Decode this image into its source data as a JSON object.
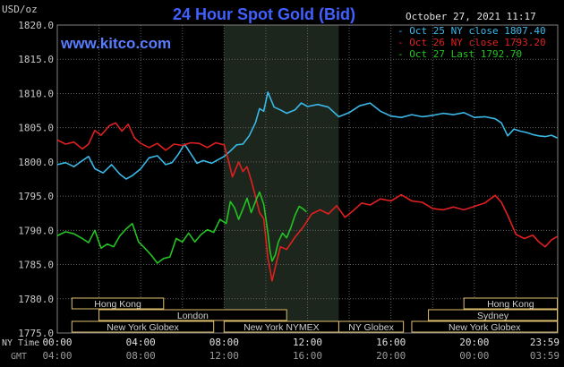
{
  "header": {
    "unit_label": "USD/oz",
    "title": "24 Hour Spot Gold (Bid)",
    "datetime": "October 27, 2021 11:17",
    "watermark": "www.kitco.com"
  },
  "colors": {
    "background": "#000000",
    "plot_bg": "#000000",
    "session_highlight": "#1c261c",
    "grid": "#606060",
    "title": "#4060ff",
    "watermark": "#5a7cff",
    "oct25": "#3ab8e8",
    "oct26": "#e02020",
    "oct27": "#22c322",
    "band_fill": "#000000",
    "band_stroke": "#e0c070",
    "band_text": "#d0d0d0",
    "axis_text": "#c8c8c8",
    "bottom_text": "#9a9a9a"
  },
  "chart_data": {
    "type": "line",
    "title": "24 Hour Spot Gold (Bid)",
    "ylabel": "USD/oz",
    "xlabel": "",
    "ylim": [
      1775,
      1820
    ],
    "xlim": [
      0,
      24
    ],
    "yticks": [
      "1820.0",
      "1815.0",
      "1810.0",
      "1805.0",
      "1800.0",
      "1795.0",
      "1790.0",
      "1785.0",
      "1780.0",
      "1775.0"
    ],
    "xticks_ny": [
      "00:00",
      "04:00",
      "08:00",
      "12:00",
      "16:00",
      "20:00",
      "23:59"
    ],
    "xticks_gmt": [
      "04:00",
      "08:00",
      "12:00",
      "16:00",
      "20:00",
      "00:00",
      "03:59"
    ],
    "x_row_label_ny": "NY Time",
    "x_row_label_gmt": "GMT",
    "grid": true,
    "legend_position": "top-right",
    "legend": [
      {
        "text": "Oct 25 NY close 1807.40",
        "series": "oct25"
      },
      {
        "text": "Oct 26 NY close 1793.20",
        "series": "oct26"
      },
      {
        "text": "Oct 27 Last 1792.70",
        "series": "oct27"
      }
    ],
    "series": [
      {
        "name": "Oct 25 NY close 1807.40",
        "key": "oct25",
        "points": [
          [
            0,
            1799.6
          ],
          [
            0.4,
            1799.9
          ],
          [
            0.8,
            1799.3
          ],
          [
            1.2,
            1800.2
          ],
          [
            1.5,
            1800.8
          ],
          [
            1.8,
            1799.0
          ],
          [
            2.2,
            1798.4
          ],
          [
            2.6,
            1799.6
          ],
          [
            3.0,
            1798.2
          ],
          [
            3.3,
            1797.5
          ],
          [
            3.6,
            1798.0
          ],
          [
            4.0,
            1799.0
          ],
          [
            4.4,
            1800.6
          ],
          [
            4.8,
            1800.9
          ],
          [
            5.2,
            1799.6
          ],
          [
            5.5,
            1799.9
          ],
          [
            5.8,
            1801.1
          ],
          [
            6.1,
            1802.6
          ],
          [
            6.4,
            1801.2
          ],
          [
            6.7,
            1799.8
          ],
          [
            7.0,
            1800.2
          ],
          [
            7.4,
            1799.8
          ],
          [
            7.7,
            1800.3
          ],
          [
            8.0,
            1800.8
          ],
          [
            8.3,
            1801.6
          ],
          [
            8.6,
            1802.5
          ],
          [
            8.9,
            1802.6
          ],
          [
            9.2,
            1803.8
          ],
          [
            9.5,
            1805.7
          ],
          [
            9.7,
            1807.8
          ],
          [
            9.9,
            1807.4
          ],
          [
            10.1,
            1810.2
          ],
          [
            10.4,
            1808.0
          ],
          [
            10.7,
            1807.6
          ],
          [
            11.0,
            1807.1
          ],
          [
            11.4,
            1807.6
          ],
          [
            11.7,
            1808.6
          ],
          [
            12.0,
            1808.1
          ],
          [
            12.5,
            1808.4
          ],
          [
            13.0,
            1808.0
          ],
          [
            13.5,
            1806.6
          ],
          [
            14.0,
            1807.2
          ],
          [
            14.5,
            1808.2
          ],
          [
            15.0,
            1808.6
          ],
          [
            15.5,
            1807.4
          ],
          [
            16.0,
            1806.7
          ],
          [
            16.5,
            1806.5
          ],
          [
            17.0,
            1806.9
          ],
          [
            17.5,
            1806.6
          ],
          [
            18.0,
            1806.8
          ],
          [
            18.5,
            1807.1
          ],
          [
            19.0,
            1806.9
          ],
          [
            19.5,
            1807.2
          ],
          [
            20.0,
            1806.5
          ],
          [
            20.5,
            1806.6
          ],
          [
            21.0,
            1806.3
          ],
          [
            21.3,
            1805.7
          ],
          [
            21.6,
            1803.8
          ],
          [
            21.9,
            1804.8
          ],
          [
            22.2,
            1804.5
          ],
          [
            22.5,
            1804.3
          ],
          [
            22.8,
            1804.0
          ],
          [
            23.1,
            1803.8
          ],
          [
            23.4,
            1803.7
          ],
          [
            23.7,
            1803.9
          ],
          [
            23.98,
            1803.5
          ]
        ]
      },
      {
        "name": "Oct 26 NY close 1793.20",
        "key": "oct26",
        "points": [
          [
            0,
            1803.2
          ],
          [
            0.4,
            1802.6
          ],
          [
            0.8,
            1802.9
          ],
          [
            1.2,
            1801.9
          ],
          [
            1.5,
            1802.6
          ],
          [
            1.8,
            1804.6
          ],
          [
            2.1,
            1803.9
          ],
          [
            2.5,
            1805.3
          ],
          [
            2.8,
            1805.7
          ],
          [
            3.1,
            1804.5
          ],
          [
            3.4,
            1805.5
          ],
          [
            3.7,
            1803.5
          ],
          [
            4.0,
            1802.7
          ],
          [
            4.4,
            1802.1
          ],
          [
            4.8,
            1802.7
          ],
          [
            5.2,
            1801.7
          ],
          [
            5.6,
            1802.6
          ],
          [
            6.0,
            1802.4
          ],
          [
            6.4,
            1802.8
          ],
          [
            6.8,
            1802.7
          ],
          [
            7.2,
            1802.1
          ],
          [
            7.6,
            1802.8
          ],
          [
            8.0,
            1802.5
          ],
          [
            8.2,
            1800.3
          ],
          [
            8.4,
            1797.8
          ],
          [
            8.7,
            1800.0
          ],
          [
            8.9,
            1798.6
          ],
          [
            9.1,
            1799.3
          ],
          [
            9.3,
            1797.3
          ],
          [
            9.5,
            1795.0
          ],
          [
            9.7,
            1792.6
          ],
          [
            9.9,
            1791.7
          ],
          [
            10.1,
            1786.0
          ],
          [
            10.3,
            1782.6
          ],
          [
            10.5,
            1785.2
          ],
          [
            10.7,
            1787.6
          ],
          [
            11.0,
            1787.2
          ],
          [
            11.4,
            1789.0
          ],
          [
            11.8,
            1790.5
          ],
          [
            12.2,
            1792.4
          ],
          [
            12.6,
            1793.0
          ],
          [
            13.0,
            1792.4
          ],
          [
            13.4,
            1793.6
          ],
          [
            13.8,
            1791.9
          ],
          [
            14.2,
            1792.9
          ],
          [
            14.6,
            1794.0
          ],
          [
            15.0,
            1793.7
          ],
          [
            15.5,
            1794.6
          ],
          [
            16.0,
            1794.3
          ],
          [
            16.5,
            1795.2
          ],
          [
            17.0,
            1794.3
          ],
          [
            17.5,
            1794.1
          ],
          [
            18.0,
            1793.2
          ],
          [
            18.5,
            1793.0
          ],
          [
            19.0,
            1793.4
          ],
          [
            19.5,
            1793.0
          ],
          [
            20.0,
            1793.5
          ],
          [
            20.5,
            1794.0
          ],
          [
            21.0,
            1795.1
          ],
          [
            21.3,
            1794.1
          ],
          [
            21.6,
            1792.2
          ],
          [
            22.0,
            1789.4
          ],
          [
            22.4,
            1788.8
          ],
          [
            22.8,
            1789.3
          ],
          [
            23.1,
            1788.3
          ],
          [
            23.4,
            1787.6
          ],
          [
            23.7,
            1788.6
          ],
          [
            23.98,
            1789.1
          ]
        ]
      },
      {
        "name": "Oct 27 Last 1792.70",
        "key": "oct27",
        "points": [
          [
            0,
            1789.2
          ],
          [
            0.4,
            1789.8
          ],
          [
            0.8,
            1789.5
          ],
          [
            1.2,
            1788.8
          ],
          [
            1.5,
            1788.2
          ],
          [
            1.8,
            1790.0
          ],
          [
            2.1,
            1787.4
          ],
          [
            2.4,
            1788.0
          ],
          [
            2.7,
            1787.6
          ],
          [
            3.0,
            1789.2
          ],
          [
            3.3,
            1790.2
          ],
          [
            3.6,
            1791.0
          ],
          [
            3.9,
            1788.3
          ],
          [
            4.2,
            1787.4
          ],
          [
            4.5,
            1786.4
          ],
          [
            4.8,
            1785.2
          ],
          [
            5.1,
            1785.9
          ],
          [
            5.4,
            1786.1
          ],
          [
            5.7,
            1788.8
          ],
          [
            6.0,
            1788.3
          ],
          [
            6.3,
            1789.6
          ],
          [
            6.6,
            1788.3
          ],
          [
            6.9,
            1789.4
          ],
          [
            7.2,
            1790.1
          ],
          [
            7.5,
            1789.7
          ],
          [
            7.8,
            1791.6
          ],
          [
            8.1,
            1791.0
          ],
          [
            8.3,
            1794.2
          ],
          [
            8.5,
            1793.3
          ],
          [
            8.7,
            1791.6
          ],
          [
            8.9,
            1793.1
          ],
          [
            9.1,
            1794.7
          ],
          [
            9.3,
            1792.6
          ],
          [
            9.5,
            1794.2
          ],
          [
            9.7,
            1795.6
          ],
          [
            9.9,
            1793.8
          ],
          [
            10.0,
            1791.8
          ],
          [
            10.1,
            1789.7
          ],
          [
            10.2,
            1787.0
          ],
          [
            10.3,
            1785.5
          ],
          [
            10.45,
            1786.4
          ],
          [
            10.6,
            1788.3
          ],
          [
            10.8,
            1789.6
          ],
          [
            11.0,
            1788.9
          ],
          [
            11.2,
            1790.4
          ],
          [
            11.4,
            1792.2
          ],
          [
            11.6,
            1793.5
          ],
          [
            11.8,
            1793.1
          ],
          [
            11.95,
            1792.7
          ]
        ]
      }
    ]
  },
  "sessions": [
    {
      "label": "Hong Kong",
      "start": 0.7,
      "end": 5.1,
      "row": 0
    },
    {
      "label": "London",
      "start": 2.0,
      "end": 11.0,
      "row": 1
    },
    {
      "label": "New York Globex",
      "start": 0.7,
      "end": 7.5,
      "row": 2
    },
    {
      "label": "New York NYMEX",
      "start": 8.0,
      "end": 13.5,
      "row": 2
    },
    {
      "label": "NY Globex",
      "start": 13.5,
      "end": 16.6,
      "row": 2
    },
    {
      "label": "Hong Kong",
      "start": 19.5,
      "end": 23.98,
      "row": 0
    },
    {
      "label": "Sydney",
      "start": 17.8,
      "end": 23.98,
      "row": 1
    },
    {
      "label": "New York Globex",
      "start": 17.0,
      "end": 23.98,
      "row": 2
    }
  ],
  "session_highlight": {
    "start": 8.0,
    "end": 13.5
  }
}
